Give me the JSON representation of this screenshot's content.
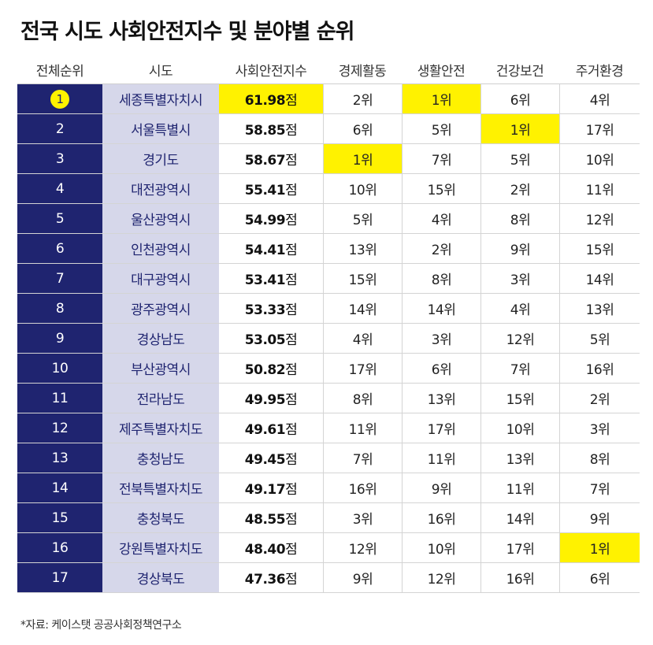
{
  "title": "전국 시도 사회안전지수 및 분야별 순위",
  "table": {
    "headers": [
      "전체순위",
      "시도",
      "사회안전지수",
      "경제활동",
      "생활안전",
      "건강보건",
      "주거환경"
    ],
    "score_unit": "점",
    "rows": [
      {
        "rank": "1",
        "region": "세종특별자치시",
        "score": "61.98",
        "economy": "2위",
        "safety": "1위",
        "health": "6위",
        "housing": "4위"
      },
      {
        "rank": "2",
        "region": "서울특별시",
        "score": "58.85",
        "economy": "6위",
        "safety": "5위",
        "health": "1위",
        "housing": "17위"
      },
      {
        "rank": "3",
        "region": "경기도",
        "score": "58.67",
        "economy": "1위",
        "safety": "7위",
        "health": "5위",
        "housing": "10위"
      },
      {
        "rank": "4",
        "region": "대전광역시",
        "score": "55.41",
        "economy": "10위",
        "safety": "15위",
        "health": "2위",
        "housing": "11위"
      },
      {
        "rank": "5",
        "region": "울산광역시",
        "score": "54.99",
        "economy": "5위",
        "safety": "4위",
        "health": "8위",
        "housing": "12위"
      },
      {
        "rank": "6",
        "region": "인천광역시",
        "score": "54.41",
        "economy": "13위",
        "safety": "2위",
        "health": "9위",
        "housing": "15위"
      },
      {
        "rank": "7",
        "region": "대구광역시",
        "score": "53.41",
        "economy": "15위",
        "safety": "8위",
        "health": "3위",
        "housing": "14위"
      },
      {
        "rank": "8",
        "region": "광주광역시",
        "score": "53.33",
        "economy": "14위",
        "safety": "14위",
        "health": "4위",
        "housing": "13위"
      },
      {
        "rank": "9",
        "region": "경상남도",
        "score": "53.05",
        "economy": "4위",
        "safety": "3위",
        "health": "12위",
        "housing": "5위"
      },
      {
        "rank": "10",
        "region": "부산광역시",
        "score": "50.82",
        "economy": "17위",
        "safety": "6위",
        "health": "7위",
        "housing": "16위"
      },
      {
        "rank": "11",
        "region": "전라남도",
        "score": "49.95",
        "economy": "8위",
        "safety": "13위",
        "health": "15위",
        "housing": "2위"
      },
      {
        "rank": "12",
        "region": "제주특별자치도",
        "score": "49.61",
        "economy": "11위",
        "safety": "17위",
        "health": "10위",
        "housing": "3위"
      },
      {
        "rank": "13",
        "region": "충청남도",
        "score": "49.45",
        "economy": "7위",
        "safety": "11위",
        "health": "13위",
        "housing": "8위"
      },
      {
        "rank": "14",
        "region": "전북특별자치도",
        "score": "49.17",
        "economy": "16위",
        "safety": "9위",
        "health": "11위",
        "housing": "7위"
      },
      {
        "rank": "15",
        "region": "충청북도",
        "score": "48.55",
        "economy": "3위",
        "safety": "16위",
        "health": "14위",
        "housing": "9위"
      },
      {
        "rank": "16",
        "region": "강원특별자치도",
        "score": "48.40",
        "economy": "12위",
        "safety": "10위",
        "health": "17위",
        "housing": "1위"
      },
      {
        "rank": "17",
        "region": "경상북도",
        "score": "47.36",
        "economy": "9위",
        "safety": "12위",
        "health": "16위",
        "housing": "6위"
      }
    ]
  },
  "highlight_color": "#fff200",
  "source": "*자료: 케이스탯 공공사회정책연구소"
}
